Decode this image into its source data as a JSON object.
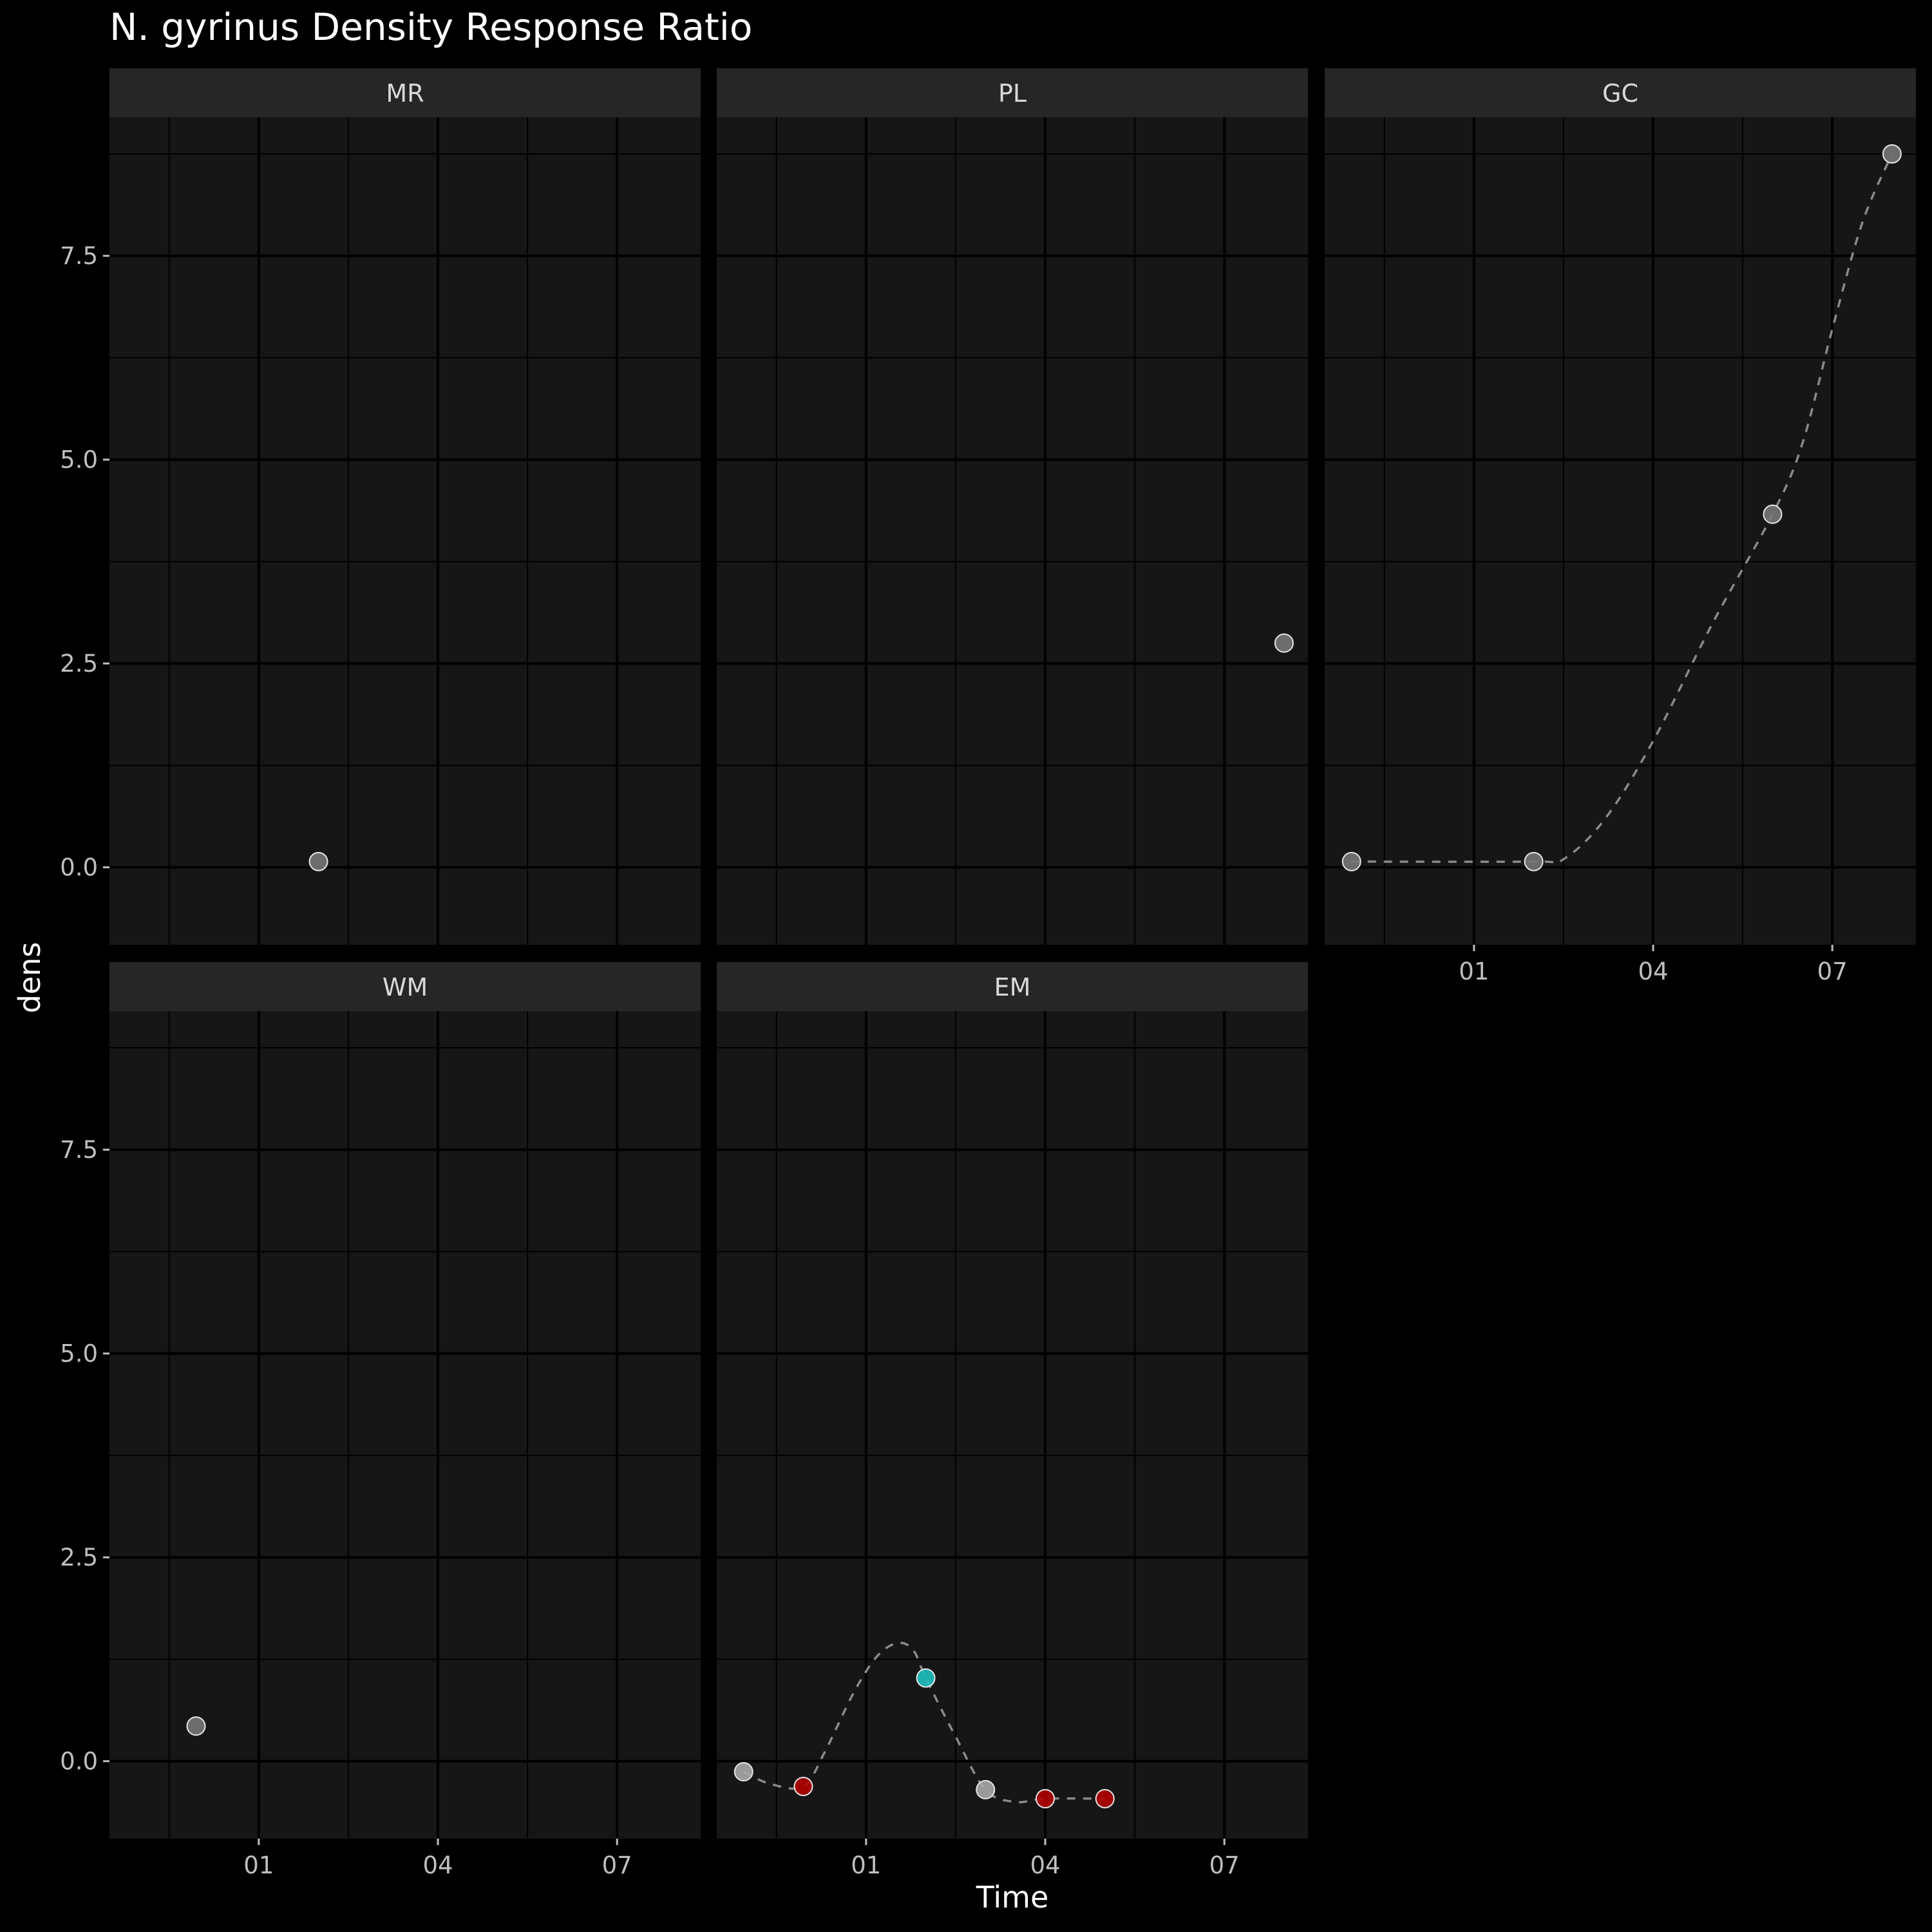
{
  "chart_data": {
    "type": "scatter",
    "title": "N. gyrinus Density Response Ratio",
    "xlabel": "Time",
    "ylabel": "dens",
    "x_ticks": [
      {
        "value": 1,
        "label": "01"
      },
      {
        "value": 4,
        "label": "04"
      },
      {
        "value": 7,
        "label": "07"
      }
    ],
    "y_ticks": [
      0.0,
      2.5,
      5.0,
      7.5
    ],
    "y_tick_labels": [
      "0.0",
      "2.5",
      "5.0",
      "7.5"
    ],
    "xlim": [
      -1.5,
      8.4
    ],
    "ylim": [
      -0.95,
      9.2
    ],
    "grid": true,
    "smooth_line": "dashed",
    "colors": {
      "background": "#000000",
      "panel": "#161616",
      "strip": "#262626",
      "grid": "#000000",
      "text": "#ffffff",
      "axis_text": "#bfbfbf",
      "point_neutral": "#777777",
      "point_neutral_light": "#a8a8a8",
      "point_red": "#b00000",
      "point_cyan": "#1fc0c0",
      "line": "#8a8a8a"
    },
    "panels": [
      {
        "strip": "MR",
        "show_x_axis": false,
        "points": [
          {
            "x": 2.0,
            "y": 0.07,
            "color": "neutral"
          }
        ],
        "smooth": []
      },
      {
        "strip": "PL",
        "show_x_axis": false,
        "points": [
          {
            "x": 8.0,
            "y": 2.75,
            "color": "neutral"
          }
        ],
        "smooth": []
      },
      {
        "strip": "GC",
        "show_x_axis": true,
        "points": [
          {
            "x": -1.05,
            "y": 0.07,
            "color": "neutral"
          },
          {
            "x": 2.0,
            "y": 0.07,
            "color": "neutral"
          },
          {
            "x": 6.0,
            "y": 4.33,
            "color": "neutral"
          },
          {
            "x": 8.0,
            "y": 8.75,
            "color": "neutral"
          }
        ],
        "smooth": [
          {
            "x": -1.05,
            "y": 0.07
          },
          {
            "x": 2.0,
            "y": 0.07
          },
          {
            "x": 2.5,
            "y": 0.1
          },
          {
            "x": 3.2,
            "y": 0.6
          },
          {
            "x": 4.0,
            "y": 1.55
          },
          {
            "x": 5.0,
            "y": 3.0
          },
          {
            "x": 6.0,
            "y": 4.33
          },
          {
            "x": 6.5,
            "y": 5.2
          },
          {
            "x": 7.0,
            "y": 6.6
          },
          {
            "x": 7.5,
            "y": 7.9
          },
          {
            "x": 8.0,
            "y": 8.75
          }
        ]
      },
      {
        "strip": "WM",
        "show_x_axis": true,
        "points": [
          {
            "x": -0.05,
            "y": 0.43,
            "color": "neutral"
          }
        ],
        "smooth": []
      },
      {
        "strip": "EM",
        "show_x_axis": true,
        "points": [
          {
            "x": -1.05,
            "y": -0.13,
            "color": "light"
          },
          {
            "x": -0.05,
            "y": -0.31,
            "color": "red"
          },
          {
            "x": 2.0,
            "y": 1.02,
            "color": "cyan"
          },
          {
            "x": 3.0,
            "y": -0.35,
            "color": "light"
          },
          {
            "x": 4.0,
            "y": -0.46,
            "color": "red"
          },
          {
            "x": 5.0,
            "y": -0.46,
            "color": "red"
          }
        ],
        "smooth": [
          {
            "x": -1.05,
            "y": -0.13
          },
          {
            "x": -0.6,
            "y": -0.28
          },
          {
            "x": -0.05,
            "y": -0.31
          },
          {
            "x": 0.3,
            "y": 0.1
          },
          {
            "x": 0.8,
            "y": 0.85
          },
          {
            "x": 1.2,
            "y": 1.3
          },
          {
            "x": 1.55,
            "y": 1.45
          },
          {
            "x": 1.8,
            "y": 1.35
          },
          {
            "x": 2.0,
            "y": 1.02
          },
          {
            "x": 2.5,
            "y": 0.3
          },
          {
            "x": 3.0,
            "y": -0.35
          },
          {
            "x": 3.5,
            "y": -0.5
          },
          {
            "x": 4.0,
            "y": -0.46
          },
          {
            "x": 5.0,
            "y": -0.46
          }
        ]
      }
    ]
  }
}
